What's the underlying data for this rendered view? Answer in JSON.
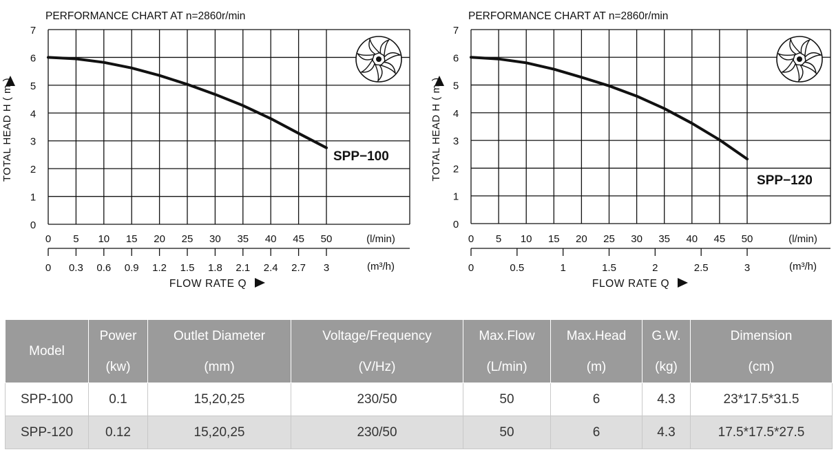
{
  "chart_data": [
    {
      "type": "line",
      "title": "PERFORMANCE  CHART  AT  n=2860r/min",
      "ylabel": "TOTAL HEAD  H ( m )",
      "xlabel": "FLOW  RATE  Q",
      "x_unit_primary": "(l/min)",
      "x_unit_secondary": "(m³/h)",
      "xlim": [
        0,
        50
      ],
      "ylim": [
        0,
        7
      ],
      "grid": true,
      "x_ticks_primary": [
        "0",
        "5",
        "10",
        "15",
        "20",
        "25",
        "30",
        "35",
        "40",
        "45",
        "50"
      ],
      "x_ticks_secondary": [
        "0",
        "0.3",
        "0.6",
        "0.9",
        "1.2",
        "1.5",
        "1.8",
        "2.1",
        "2.4",
        "2.7",
        "3"
      ],
      "y_ticks": [
        "0",
        "1",
        "2",
        "3",
        "4",
        "5",
        "6",
        "7"
      ],
      "series": [
        {
          "name": "SPP−100",
          "x": [
            0,
            5,
            10,
            15,
            20,
            25,
            30,
            35,
            40,
            45,
            50
          ],
          "y": [
            6.0,
            5.95,
            5.82,
            5.62,
            5.35,
            5.03,
            4.67,
            4.27,
            3.8,
            3.27,
            2.75
          ]
        }
      ],
      "icon": "impeller-icon"
    },
    {
      "type": "line",
      "title": "PERFORMANCE  CHART  AT  n=2860r/min",
      "ylabel": "TOTAL HEAD  H ( m )",
      "xlabel": "FLOW  RATE  Q",
      "x_unit_primary": "(l/min)",
      "x_unit_secondary": "(m³/h)",
      "xlim": [
        0,
        50
      ],
      "ylim": [
        0,
        7
      ],
      "grid": true,
      "x_ticks_primary": [
        "0",
        "5",
        "10",
        "15",
        "20",
        "25",
        "30",
        "35",
        "40",
        "45",
        "50"
      ],
      "x_ticks_secondary": [
        "0",
        "0.5",
        "1",
        "1.5",
        "2",
        "2.5",
        "3"
      ],
      "y_ticks": [
        "0",
        "1",
        "2",
        "3",
        "4",
        "5",
        "6",
        "7"
      ],
      "series": [
        {
          "name": "SPP−120",
          "x": [
            0,
            5,
            10,
            15,
            20,
            25,
            30,
            35,
            40,
            45,
            50
          ],
          "y": [
            6.0,
            5.94,
            5.8,
            5.57,
            5.28,
            4.97,
            4.6,
            4.15,
            3.62,
            3.02,
            2.33
          ]
        }
      ],
      "icon": "impeller-icon"
    }
  ],
  "spec_table": {
    "headers": [
      {
        "line1": "Model",
        "line2": ""
      },
      {
        "line1": "Power",
        "line2": "(kw)"
      },
      {
        "line1": "Outlet Diameter",
        "line2": "(mm)"
      },
      {
        "line1": "Voltage/Frequency",
        "line2": "(V/Hz)"
      },
      {
        "line1": "Max.Flow",
        "line2": "(L/min)"
      },
      {
        "line1": "Max.Head",
        "line2": "(m)"
      },
      {
        "line1": "G.W.",
        "line2": "(kg)"
      },
      {
        "line1": "Dimension",
        "line2": "(cm)"
      }
    ],
    "rows": [
      [
        "SPP-100",
        "0.1",
        "15,20,25",
        "230/50",
        "50",
        "6",
        "4.3",
        "23*17.5*31.5"
      ],
      [
        "SPP-120",
        "0.12",
        "15,20,25",
        "230/50",
        "50",
        "6",
        "4.3",
        "17.5*17.5*27.5"
      ]
    ]
  },
  "colors": {
    "header_bg": "#9b9b9b",
    "alt_row_bg": "#dedede",
    "curve": "#111111",
    "grid": "#111111"
  }
}
